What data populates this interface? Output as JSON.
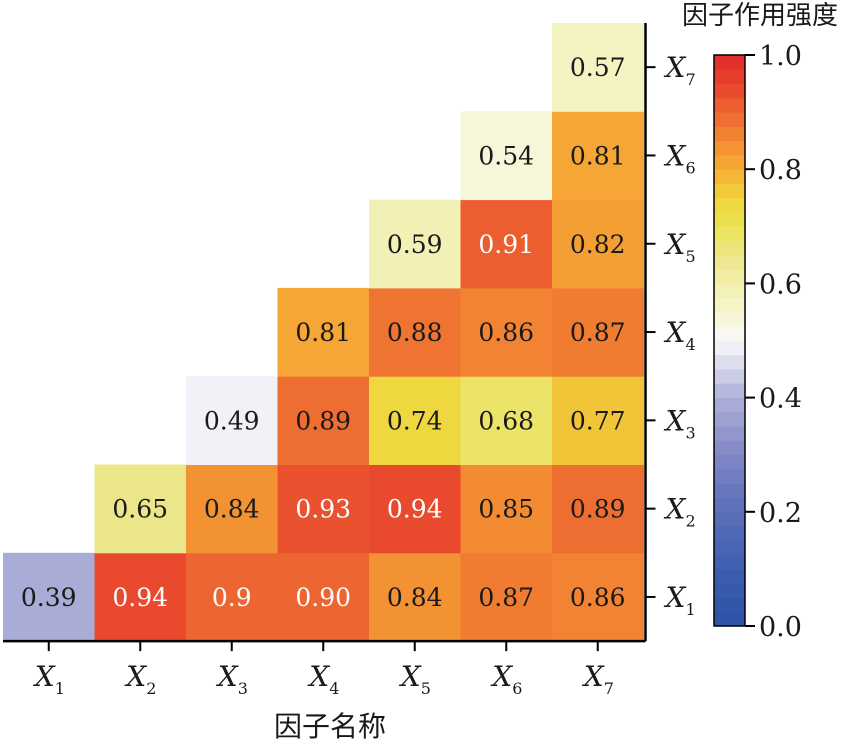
{
  "chart_data": {
    "type": "heatmap",
    "title": "",
    "xlabel": "因子名称",
    "colorbar_label": "因子作用强度",
    "x_categories": [
      "X1",
      "X2",
      "X3",
      "X4",
      "X5",
      "X6",
      "X7"
    ],
    "y_categories": [
      "X1",
      "X2",
      "X3",
      "X4",
      "X5",
      "X6",
      "X7"
    ],
    "x_tick_labels": [
      {
        "main": "X",
        "sub": "1"
      },
      {
        "main": "X",
        "sub": "2"
      },
      {
        "main": "X",
        "sub": "3"
      },
      {
        "main": "X",
        "sub": "4"
      },
      {
        "main": "X",
        "sub": "5"
      },
      {
        "main": "X",
        "sub": "6"
      },
      {
        "main": "X",
        "sub": "7"
      }
    ],
    "y_tick_labels": [
      {
        "main": "X",
        "sub": "1"
      },
      {
        "main": "X",
        "sub": "2"
      },
      {
        "main": "X",
        "sub": "3"
      },
      {
        "main": "X",
        "sub": "4"
      },
      {
        "main": "X",
        "sub": "5"
      },
      {
        "main": "X",
        "sub": "6"
      },
      {
        "main": "X",
        "sub": "7"
      }
    ],
    "cells": [
      {
        "row": "X1",
        "col": "X1",
        "value": 0.39,
        "label": "0.39"
      },
      {
        "row": "X1",
        "col": "X2",
        "value": 0.94,
        "label": "0.94"
      },
      {
        "row": "X1",
        "col": "X3",
        "value": 0.9,
        "label": "0.9"
      },
      {
        "row": "X1",
        "col": "X4",
        "value": 0.9,
        "label": "0.90"
      },
      {
        "row": "X1",
        "col": "X5",
        "value": 0.84,
        "label": "0.84"
      },
      {
        "row": "X1",
        "col": "X6",
        "value": 0.87,
        "label": "0.87"
      },
      {
        "row": "X1",
        "col": "X7",
        "value": 0.86,
        "label": "0.86"
      },
      {
        "row": "X2",
        "col": "X2",
        "value": 0.65,
        "label": "0.65"
      },
      {
        "row": "X2",
        "col": "X3",
        "value": 0.84,
        "label": "0.84"
      },
      {
        "row": "X2",
        "col": "X4",
        "value": 0.93,
        "label": "0.93"
      },
      {
        "row": "X2",
        "col": "X5",
        "value": 0.94,
        "label": "0.94"
      },
      {
        "row": "X2",
        "col": "X6",
        "value": 0.85,
        "label": "0.85"
      },
      {
        "row": "X2",
        "col": "X7",
        "value": 0.89,
        "label": "0.89"
      },
      {
        "row": "X3",
        "col": "X3",
        "value": 0.49,
        "label": "0.49"
      },
      {
        "row": "X3",
        "col": "X4",
        "value": 0.89,
        "label": "0.89"
      },
      {
        "row": "X3",
        "col": "X5",
        "value": 0.74,
        "label": "0.74"
      },
      {
        "row": "X3",
        "col": "X6",
        "value": 0.68,
        "label": "0.68"
      },
      {
        "row": "X3",
        "col": "X7",
        "value": 0.77,
        "label": "0.77"
      },
      {
        "row": "X4",
        "col": "X4",
        "value": 0.81,
        "label": "0.81"
      },
      {
        "row": "X4",
        "col": "X5",
        "value": 0.88,
        "label": "0.88"
      },
      {
        "row": "X4",
        "col": "X6",
        "value": 0.86,
        "label": "0.86"
      },
      {
        "row": "X4",
        "col": "X7",
        "value": 0.87,
        "label": "0.87"
      },
      {
        "row": "X5",
        "col": "X5",
        "value": 0.59,
        "label": "0.59"
      },
      {
        "row": "X5",
        "col": "X6",
        "value": 0.91,
        "label": "0.91"
      },
      {
        "row": "X5",
        "col": "X7",
        "value": 0.82,
        "label": "0.82"
      },
      {
        "row": "X6",
        "col": "X6",
        "value": 0.54,
        "label": "0.54"
      },
      {
        "row": "X6",
        "col": "X7",
        "value": 0.81,
        "label": "0.81"
      },
      {
        "row": "X7",
        "col": "X7",
        "value": 0.57,
        "label": "0.57"
      }
    ],
    "colorbar": {
      "range": [
        0.0,
        1.0
      ],
      "ticks": [
        0.0,
        0.2,
        0.4,
        0.6,
        0.8,
        1.0
      ],
      "tick_labels": [
        "0.0",
        "0.2",
        "0.4",
        "0.6",
        "0.8",
        "1.0"
      ],
      "colors": {
        "0.0": "#2a52a6",
        "0.1": "#3f5fb0",
        "0.2": "#5a6fb9",
        "0.3": "#8087c6",
        "0.4": "#aeb0d8",
        "0.45": "#d4d5ea",
        "0.5": "#f8f8fb",
        "0.55": "#f6f5cf",
        "0.6": "#f2efae",
        "0.65": "#ece68a",
        "0.7": "#ebe352",
        "0.75": "#f0d43a",
        "0.8": "#f6ad35",
        "0.85": "#f28b32",
        "0.9": "#ed6530",
        "0.95": "#e8432d",
        "1.0": "#e32a2b"
      }
    },
    "grid": false,
    "legend": "colorbar-right"
  }
}
